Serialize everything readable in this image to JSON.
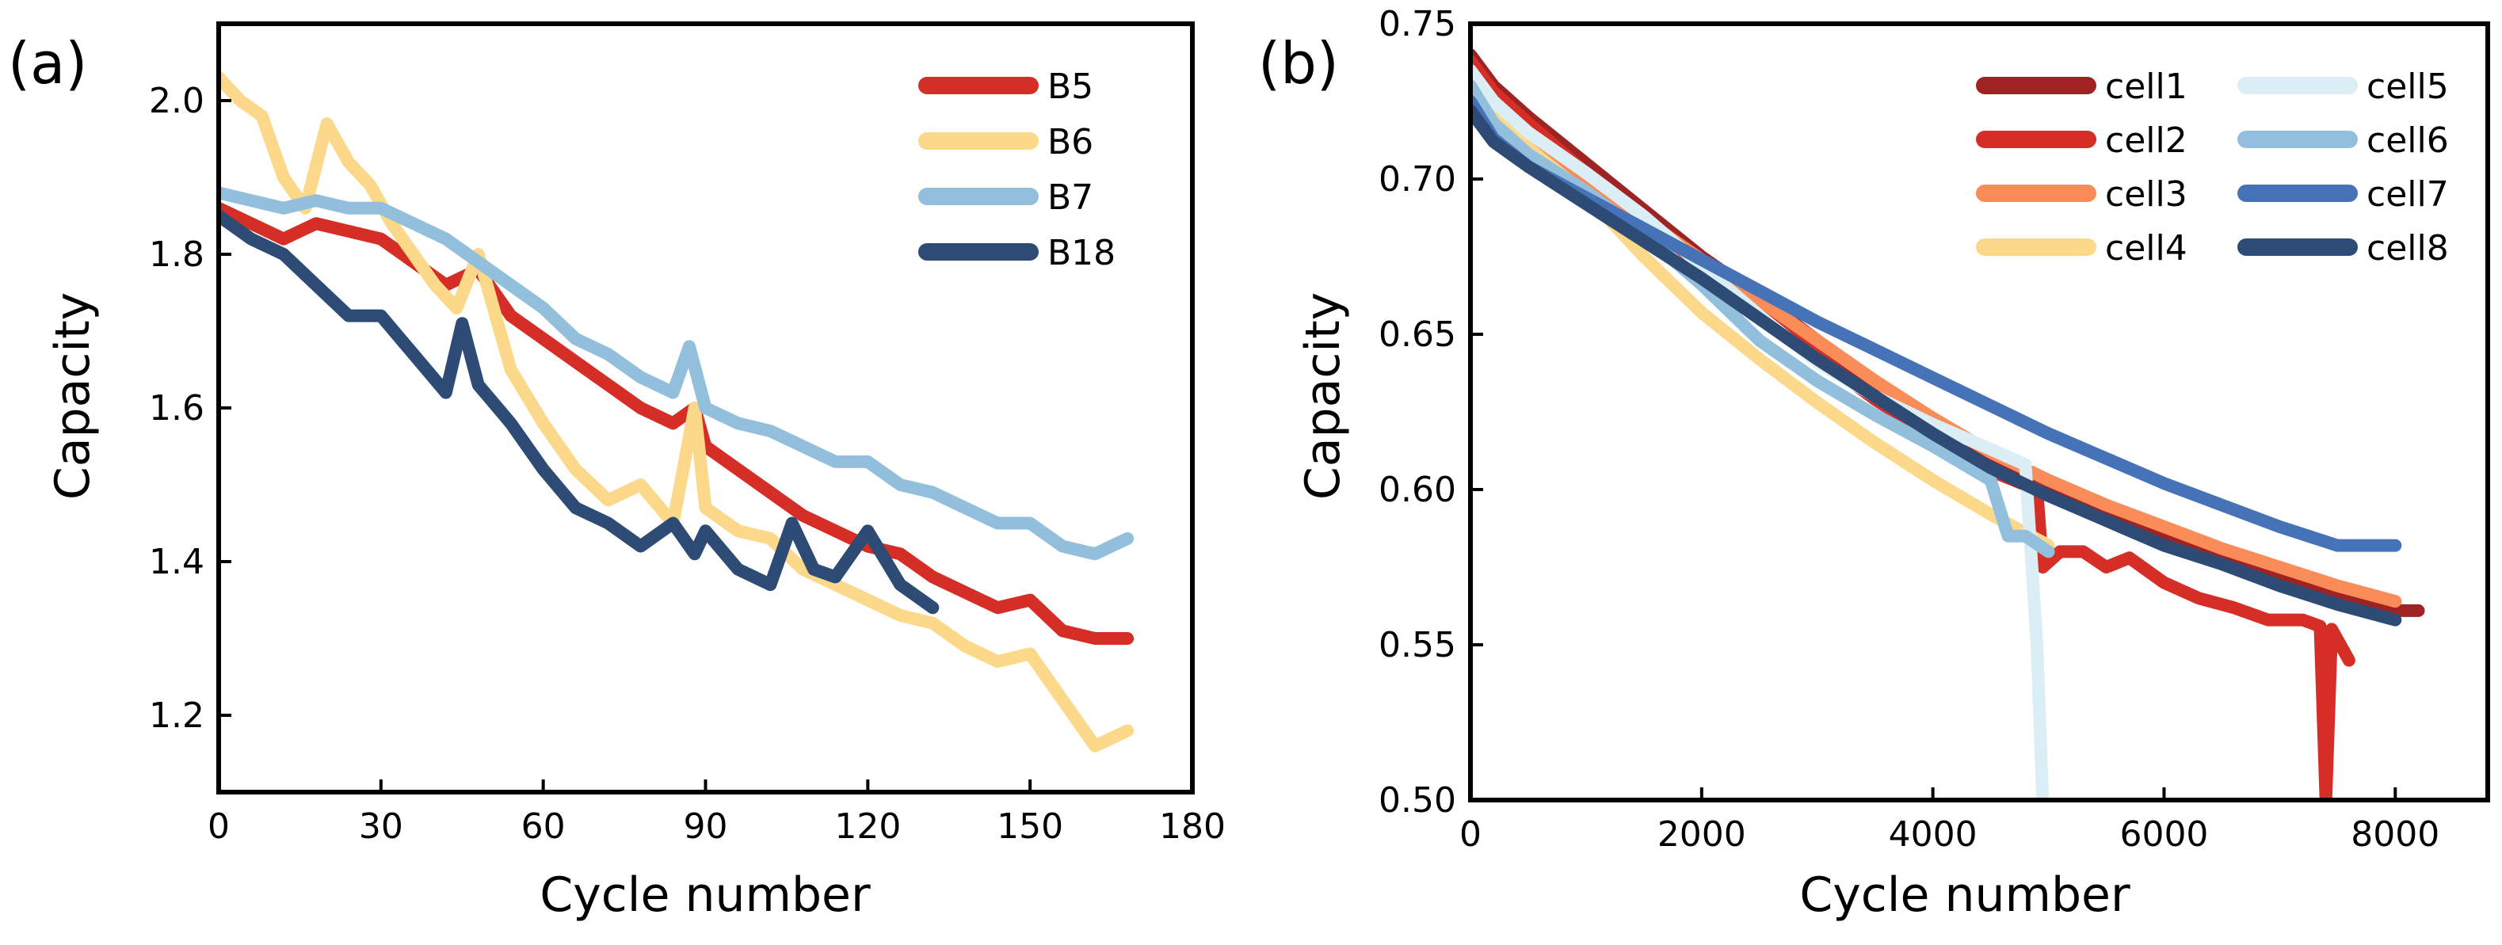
{
  "chart_data": [
    {
      "type": "line",
      "panel_label": "(a)",
      "xlabel": "Cycle number",
      "ylabel": "Capacity",
      "xlim": [
        0,
        180
      ],
      "ylim": [
        1.1,
        2.1
      ],
      "xticks": [
        0,
        30,
        60,
        90,
        120,
        150,
        180
      ],
      "yticks": [
        1.2,
        1.4,
        1.6,
        1.8,
        2.0
      ],
      "xtick_labels": [
        "0",
        "30",
        "60",
        "90",
        "120",
        "150",
        "180"
      ],
      "ytick_labels": [
        "1.2",
        "1.4",
        "1.6",
        "1.8",
        "2.0"
      ],
      "legend_position": "top-right",
      "series": [
        {
          "name": "B5",
          "color": "#d52e27",
          "x": [
            0,
            6,
            12,
            18,
            24,
            30,
            36,
            42,
            48,
            54,
            60,
            66,
            72,
            78,
            84,
            88,
            90,
            96,
            102,
            108,
            114,
            120,
            126,
            132,
            138,
            144,
            150,
            156,
            162,
            168
          ],
          "y": [
            1.86,
            1.84,
            1.82,
            1.84,
            1.83,
            1.82,
            1.79,
            1.76,
            1.78,
            1.72,
            1.69,
            1.66,
            1.63,
            1.6,
            1.58,
            1.6,
            1.55,
            1.52,
            1.49,
            1.46,
            1.44,
            1.42,
            1.41,
            1.38,
            1.36,
            1.34,
            1.35,
            1.31,
            1.3,
            1.3
          ]
        },
        {
          "name": "B6",
          "color": "#fcd98a",
          "x": [
            0,
            4,
            8,
            12,
            16,
            20,
            24,
            28,
            32,
            36,
            40,
            44,
            48,
            54,
            60,
            66,
            72,
            78,
            84,
            88,
            90,
            96,
            102,
            108,
            114,
            120,
            126,
            132,
            138,
            144,
            150,
            156,
            162,
            168
          ],
          "y": [
            2.03,
            2.0,
            1.98,
            1.9,
            1.86,
            1.97,
            1.92,
            1.89,
            1.84,
            1.8,
            1.76,
            1.73,
            1.8,
            1.65,
            1.58,
            1.52,
            1.48,
            1.5,
            1.45,
            1.6,
            1.47,
            1.44,
            1.43,
            1.39,
            1.37,
            1.35,
            1.33,
            1.32,
            1.29,
            1.27,
            1.28,
            1.22,
            1.16,
            1.18
          ]
        },
        {
          "name": "B7",
          "color": "#92bfdc",
          "x": [
            0,
            6,
            12,
            18,
            24,
            30,
            36,
            42,
            48,
            54,
            60,
            66,
            72,
            78,
            84,
            87,
            90,
            96,
            102,
            108,
            114,
            120,
            126,
            132,
            138,
            144,
            150,
            156,
            162,
            168
          ],
          "y": [
            1.88,
            1.87,
            1.86,
            1.87,
            1.86,
            1.86,
            1.84,
            1.82,
            1.79,
            1.76,
            1.73,
            1.69,
            1.67,
            1.64,
            1.62,
            1.68,
            1.6,
            1.58,
            1.57,
            1.55,
            1.53,
            1.53,
            1.5,
            1.49,
            1.47,
            1.45,
            1.45,
            1.42,
            1.41,
            1.43
          ]
        },
        {
          "name": "B18",
          "color": "#2d4b74",
          "x": [
            0,
            6,
            12,
            18,
            24,
            30,
            36,
            42,
            45,
            48,
            54,
            60,
            66,
            72,
            78,
            84,
            88,
            90,
            96,
            102,
            106,
            110,
            114,
            120,
            126,
            132
          ],
          "y": [
            1.85,
            1.82,
            1.8,
            1.76,
            1.72,
            1.72,
            1.67,
            1.62,
            1.71,
            1.63,
            1.58,
            1.52,
            1.47,
            1.45,
            1.42,
            1.45,
            1.41,
            1.44,
            1.39,
            1.37,
            1.45,
            1.39,
            1.38,
            1.44,
            1.37,
            1.34
          ]
        }
      ]
    },
    {
      "type": "line",
      "panel_label": "(b)",
      "xlabel": "Cycle number",
      "ylabel": "Capacity",
      "xlim": [
        0,
        8800
      ],
      "ylim": [
        0.5,
        0.75
      ],
      "xticks": [
        0,
        2000,
        4000,
        6000,
        8000
      ],
      "yticks": [
        0.5,
        0.55,
        0.6,
        0.65,
        0.7,
        0.75
      ],
      "xtick_labels": [
        "0",
        "2000",
        "4000",
        "6000",
        "8000"
      ],
      "ytick_labels": [
        "0.50",
        "0.55",
        "0.60",
        "0.65",
        "0.70",
        "0.75"
      ],
      "legend_position": "top-right",
      "legend_columns": 2,
      "series": [
        {
          "name": "cell1",
          "color": "#a02323",
          "x": [
            0,
            200,
            500,
            1000,
            1500,
            2000,
            2500,
            3000,
            3500,
            4000,
            4500,
            5000,
            5500,
            6000,
            6500,
            7000,
            7500,
            8000,
            8200
          ],
          "y": [
            0.74,
            0.73,
            0.72,
            0.705,
            0.69,
            0.675,
            0.662,
            0.648,
            0.634,
            0.621,
            0.609,
            0.6,
            0.592,
            0.585,
            0.578,
            0.572,
            0.566,
            0.561,
            0.561
          ]
        },
        {
          "name": "cell2",
          "color": "#d52e27",
          "x": [
            0,
            200,
            500,
            1000,
            1500,
            2000,
            2500,
            3000,
            3500,
            4000,
            4500,
            4900,
            4950,
            5100,
            5300,
            5500,
            5700,
            6000,
            6300,
            6600,
            6900,
            7200,
            7350,
            7400,
            7450,
            7600
          ],
          "y": [
            0.738,
            0.728,
            0.718,
            0.702,
            0.687,
            0.672,
            0.657,
            0.643,
            0.629,
            0.617,
            0.606,
            0.6,
            0.575,
            0.58,
            0.58,
            0.575,
            0.578,
            0.57,
            0.565,
            0.562,
            0.558,
            0.558,
            0.556,
            0.5,
            0.555,
            0.545
          ]
        },
        {
          "name": "cell3",
          "color": "#fa8c5a",
          "x": [
            0,
            200,
            500,
            1000,
            1500,
            2000,
            2500,
            3000,
            3500,
            4000,
            4500,
            5000,
            5500,
            6000,
            6500,
            7000,
            7500,
            8000
          ],
          "y": [
            0.73,
            0.72,
            0.712,
            0.7,
            0.687,
            0.674,
            0.661,
            0.648,
            0.635,
            0.623,
            0.612,
            0.603,
            0.595,
            0.588,
            0.581,
            0.575,
            0.569,
            0.564
          ]
        },
        {
          "name": "cell4",
          "color": "#fcd98a",
          "x": [
            0,
            200,
            500,
            1000,
            1500,
            2000,
            2500,
            3000,
            3500,
            4000,
            4500,
            5000
          ],
          "y": [
            0.733,
            0.72,
            0.71,
            0.695,
            0.675,
            0.657,
            0.642,
            0.628,
            0.615,
            0.603,
            0.592,
            0.582
          ]
        },
        {
          "name": "cell5",
          "color": "#dbeef5",
          "x": [
            0,
            200,
            500,
            1000,
            1500,
            2000,
            2500,
            3000,
            3500,
            4000,
            4500,
            4800,
            4900,
            4950
          ],
          "y": [
            0.735,
            0.725,
            0.715,
            0.702,
            0.688,
            0.672,
            0.656,
            0.641,
            0.63,
            0.621,
            0.613,
            0.608,
            0.55,
            0.5
          ]
        },
        {
          "name": "cell6",
          "color": "#92bfdc",
          "x": [
            0,
            200,
            500,
            1000,
            1500,
            2000,
            2500,
            3000,
            3500,
            4000,
            4500,
            4650,
            4800,
            5000
          ],
          "y": [
            0.73,
            0.718,
            0.708,
            0.696,
            0.682,
            0.666,
            0.648,
            0.635,
            0.624,
            0.614,
            0.603,
            0.585,
            0.585,
            0.58
          ]
        },
        {
          "name": "cell7",
          "color": "#4672b8",
          "x": [
            0,
            200,
            500,
            1000,
            1500,
            2000,
            2500,
            3000,
            3500,
            4000,
            4500,
            5000,
            5500,
            6000,
            6500,
            7000,
            7500,
            8000
          ],
          "y": [
            0.725,
            0.713,
            0.704,
            0.694,
            0.684,
            0.674,
            0.664,
            0.654,
            0.645,
            0.636,
            0.627,
            0.618,
            0.61,
            0.602,
            0.595,
            0.588,
            0.582,
            0.582
          ]
        },
        {
          "name": "cell8",
          "color": "#2d4b74",
          "x": [
            0,
            200,
            500,
            1000,
            1500,
            2000,
            2500,
            3000,
            3500,
            4000,
            4500,
            5000,
            5500,
            6000,
            6500,
            7000,
            7500,
            8000
          ],
          "y": [
            0.722,
            0.712,
            0.704,
            0.692,
            0.68,
            0.668,
            0.655,
            0.642,
            0.63,
            0.618,
            0.607,
            0.598,
            0.59,
            0.582,
            0.576,
            0.569,
            0.563,
            0.558
          ]
        }
      ]
    }
  ]
}
